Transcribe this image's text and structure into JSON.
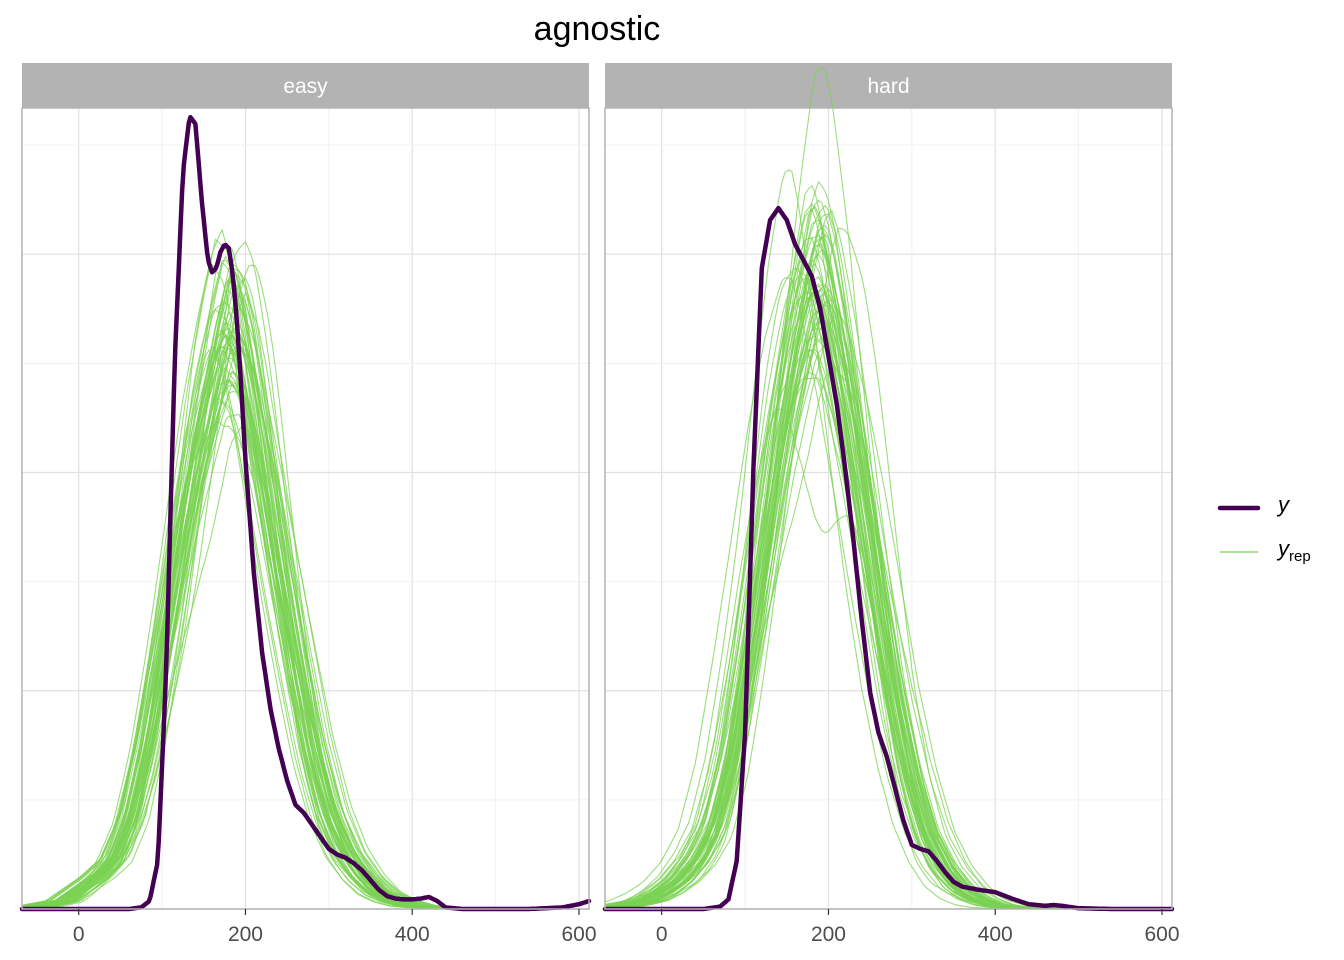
{
  "chart_data": {
    "type": "line",
    "title": "agnostic",
    "xlabel": "",
    "ylabel": "",
    "xlim": [
      -68,
      612
    ],
    "xticks": [
      0,
      200,
      400,
      600
    ],
    "ylim": [
      0,
      1
    ],
    "y_tick_labels_shown": false,
    "grid": true,
    "legend": "right",
    "colors": {
      "y": "#440154",
      "yrep": "#7ad151",
      "strip": "#b3b3b3",
      "grid": "#e0e0e0",
      "border": "#b3b3b3"
    },
    "legend_items": [
      {
        "key": "y",
        "label": "y",
        "subscript": ""
      },
      {
        "key": "yrep",
        "label": "y",
        "subscript": "rep"
      }
    ],
    "panels": [
      {
        "label": "easy",
        "y": {
          "x": [
            -68,
            40,
            60,
            75,
            85,
            95,
            105,
            115,
            125,
            133,
            140,
            148,
            155,
            160,
            165,
            170,
            175,
            180,
            185,
            190,
            195,
            200,
            210,
            220,
            230,
            240,
            250,
            260,
            270,
            280,
            290,
            300,
            310,
            320,
            330,
            340,
            350,
            360,
            370,
            380,
            390,
            400,
            410,
            420,
            430,
            440,
            460,
            500,
            540,
            580,
            600,
            612
          ],
          "values": [
            0.0,
            0.0,
            0.0,
            0.002,
            0.01,
            0.06,
            0.3,
            0.68,
            0.92,
            0.99,
            0.98,
            0.88,
            0.81,
            0.795,
            0.8,
            0.82,
            0.83,
            0.825,
            0.79,
            0.73,
            0.65,
            0.56,
            0.42,
            0.32,
            0.25,
            0.2,
            0.16,
            0.13,
            0.12,
            0.105,
            0.09,
            0.075,
            0.068,
            0.064,
            0.057,
            0.048,
            0.036,
            0.024,
            0.016,
            0.013,
            0.012,
            0.012,
            0.013,
            0.015,
            0.01,
            0.002,
            0.0,
            0.0,
            0.0,
            0.002,
            0.006,
            0.01
          ]
        },
        "yrep_mean": {
          "x": [
            -68,
            -20,
            0,
            20,
            40,
            60,
            80,
            100,
            120,
            140,
            160,
            175,
            190,
            200,
            220,
            240,
            260,
            280,
            300,
            320,
            340,
            360,
            380,
            400,
            420,
            440,
            460,
            612
          ],
          "values": [
            0.0,
            0.01,
            0.025,
            0.04,
            0.06,
            0.11,
            0.2,
            0.32,
            0.45,
            0.58,
            0.68,
            0.74,
            0.72,
            0.68,
            0.56,
            0.43,
            0.31,
            0.2,
            0.12,
            0.07,
            0.04,
            0.02,
            0.01,
            0.004,
            0.002,
            0.001,
            0.0,
            0.0
          ]
        }
      },
      {
        "label": "hard",
        "y": {
          "x": [
            -68,
            50,
            70,
            80,
            90,
            100,
            110,
            120,
            130,
            140,
            150,
            160,
            170,
            180,
            190,
            200,
            210,
            220,
            230,
            240,
            250,
            260,
            270,
            280,
            290,
            300,
            310,
            320,
            330,
            340,
            350,
            360,
            380,
            400,
            420,
            440,
            460,
            470,
            480,
            500,
            540,
            612
          ],
          "values": [
            0.0,
            0.0,
            0.003,
            0.012,
            0.06,
            0.22,
            0.55,
            0.8,
            0.86,
            0.875,
            0.86,
            0.83,
            0.81,
            0.79,
            0.75,
            0.69,
            0.63,
            0.55,
            0.46,
            0.36,
            0.27,
            0.22,
            0.19,
            0.15,
            0.11,
            0.08,
            0.075,
            0.072,
            0.06,
            0.046,
            0.034,
            0.028,
            0.024,
            0.021,
            0.013,
            0.006,
            0.004,
            0.005,
            0.004,
            0.001,
            0.0,
            0.0
          ]
        },
        "yrep_mean": {
          "x": [
            -68,
            -20,
            0,
            20,
            40,
            60,
            80,
            100,
            120,
            140,
            160,
            180,
            190,
            200,
            220,
            240,
            260,
            280,
            300,
            320,
            340,
            360,
            380,
            400,
            420,
            440,
            460,
            612
          ],
          "values": [
            0.0,
            0.01,
            0.02,
            0.035,
            0.06,
            0.1,
            0.18,
            0.3,
            0.43,
            0.57,
            0.69,
            0.78,
            0.79,
            0.76,
            0.66,
            0.53,
            0.39,
            0.26,
            0.16,
            0.09,
            0.05,
            0.025,
            0.012,
            0.005,
            0.002,
            0.001,
            0.0,
            0.0
          ]
        }
      }
    ]
  }
}
